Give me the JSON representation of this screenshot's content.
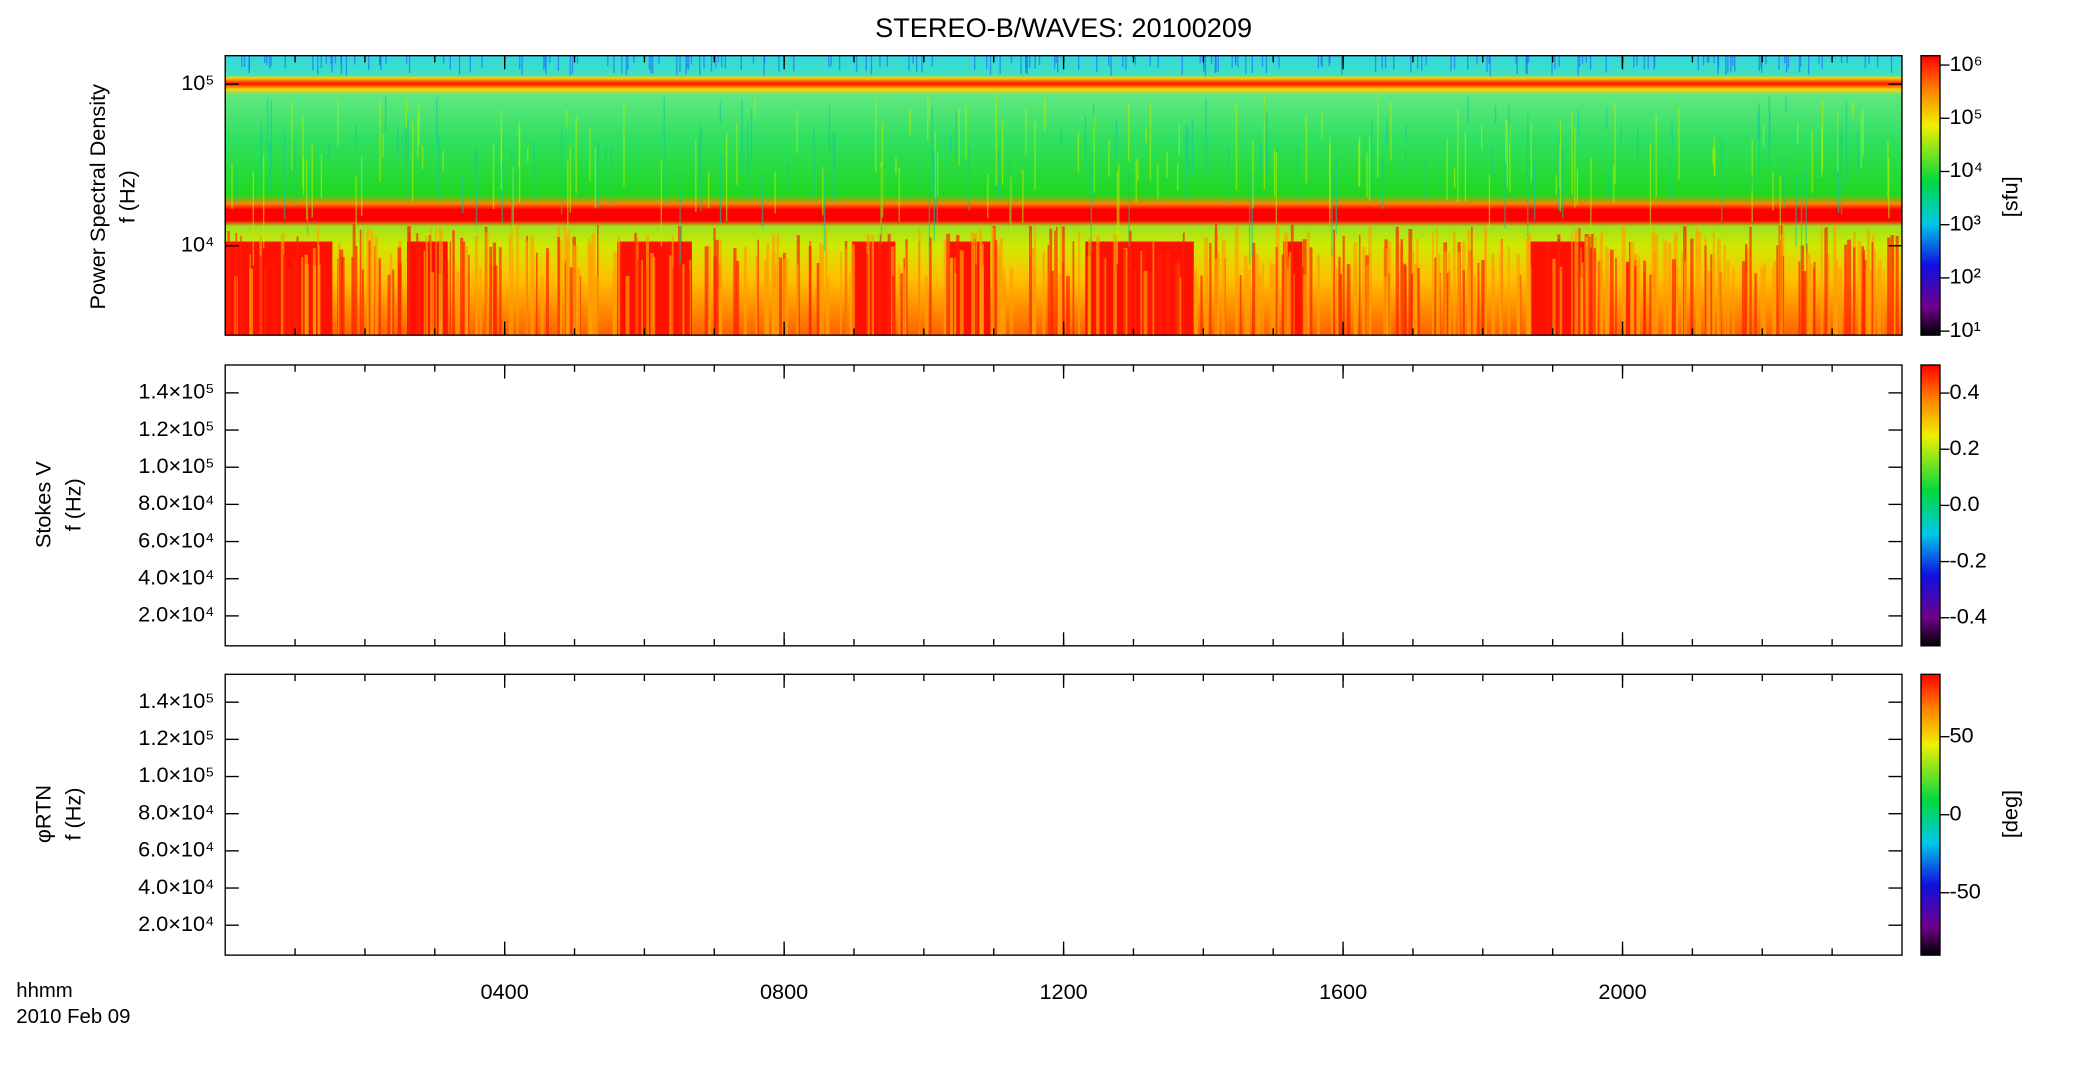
{
  "chart_data": [
    {
      "type": "heatmap",
      "title": "STEREO-B/WAVES: 20100209",
      "ylabel": [
        "Power Spectral Density",
        "f (Hz)"
      ],
      "ylog": true,
      "ylim": [
        2800,
        150000
      ],
      "yticks": [
        {
          "value": 10000,
          "label": "10⁴"
        },
        {
          "value": 100000,
          "label": "10⁵"
        }
      ],
      "colorbar": {
        "log": true,
        "lim": [
          8.4,
          1500000
        ],
        "label": "[sfu]",
        "ticks": [
          {
            "value": 10,
            "label": "10¹"
          },
          {
            "value": 100,
            "label": "10²"
          },
          {
            "value": 1000,
            "label": "10³"
          },
          {
            "value": 10000,
            "label": "10⁴"
          },
          {
            "value": 100000,
            "label": "10⁵"
          },
          {
            "value": 1000000,
            "label": "10⁶"
          }
        ]
      }
    },
    {
      "type": "heatmap",
      "ylabel": [
        "Stokes V",
        "f (Hz)"
      ],
      "ylog": false,
      "ylim": [
        3900,
        155000
      ],
      "yticks": [
        {
          "value": 20000,
          "label": "2.0×10⁴"
        },
        {
          "value": 40000,
          "label": "4.0×10⁴"
        },
        {
          "value": 60000,
          "label": "6.0×10⁴"
        },
        {
          "value": 80000,
          "label": "8.0×10⁴"
        },
        {
          "value": 100000,
          "label": "1.0×10⁵"
        },
        {
          "value": 120000,
          "label": "1.2×10⁵"
        },
        {
          "value": 140000,
          "label": "1.4×10⁵"
        }
      ],
      "colorbar": {
        "log": false,
        "lim": [
          -0.5,
          0.5
        ],
        "ticks": [
          {
            "value": -0.4,
            "label": "-0.4"
          },
          {
            "value": -0.2,
            "label": "-0.2"
          },
          {
            "value": 0,
            "label": "0.0"
          },
          {
            "value": 0.2,
            "label": "0.2"
          },
          {
            "value": 0.4,
            "label": "0.4"
          }
        ]
      }
    },
    {
      "type": "heatmap",
      "ylabel": [
        "φRTN",
        "f (Hz)"
      ],
      "ylog": false,
      "ylim": [
        3900,
        155000
      ],
      "yticks": [
        {
          "value": 20000,
          "label": "2.0×10⁴"
        },
        {
          "value": 40000,
          "label": "4.0×10⁴"
        },
        {
          "value": 60000,
          "label": "6.0×10⁴"
        },
        {
          "value": 80000,
          "label": "8.0×10⁴"
        },
        {
          "value": 100000,
          "label": "1.0×10⁵"
        },
        {
          "value": 120000,
          "label": "1.2×10⁵"
        },
        {
          "value": 140000,
          "label": "1.4×10⁵"
        }
      ],
      "colorbar": {
        "log": false,
        "lim": [
          -90,
          90
        ],
        "label": "[deg]",
        "ticks": [
          -50,
          0,
          50
        ]
      },
      "xlabel": "hhmm",
      "date": "2010 Feb 09",
      "xlim": [
        0,
        24
      ],
      "xticks": [
        {
          "value": 4,
          "label": "0400"
        },
        {
          "value": 8,
          "label": "0800"
        },
        {
          "value": 12,
          "label": "1200"
        },
        {
          "value": 16,
          "label": "1600"
        },
        {
          "value": 20,
          "label": "2000"
        }
      ]
    }
  ]
}
